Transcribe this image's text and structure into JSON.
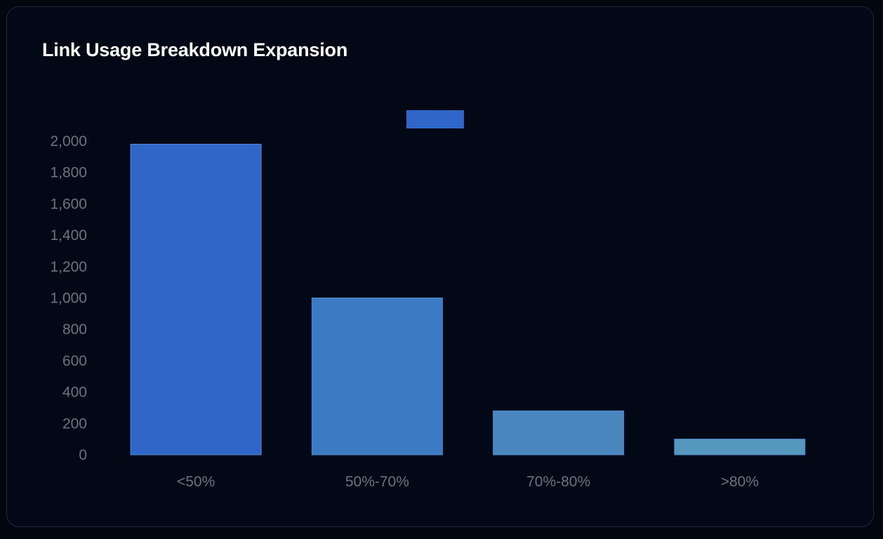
{
  "chart_data": {
    "type": "bar",
    "title": "Link Usage Breakdown Expansion",
    "categories": [
      "<50%",
      "50%-70%",
      "70%-80%",
      ">80%"
    ],
    "series": [
      {
        "values": [
          1980,
          1000,
          280,
          100
        ]
      }
    ],
    "bar_colors": [
      "#3066c8",
      "#3d7ac4",
      "#4a86be",
      "#5698bd"
    ],
    "bar_border": "#4f8bd6",
    "legend_color": "#3066c8",
    "legend_position": "top-center",
    "ylim": [
      0,
      2000
    ],
    "yticks": [
      0,
      200,
      400,
      600,
      800,
      1000,
      1200,
      1400,
      1600,
      1800,
      2000
    ],
    "ytick_labels": [
      "0",
      "200",
      "400",
      "600",
      "800",
      "1,000",
      "1,200",
      "1,400",
      "1,600",
      "1,800",
      "2,000"
    ],
    "xlabel": "",
    "ylabel": "",
    "grid": false
  }
}
